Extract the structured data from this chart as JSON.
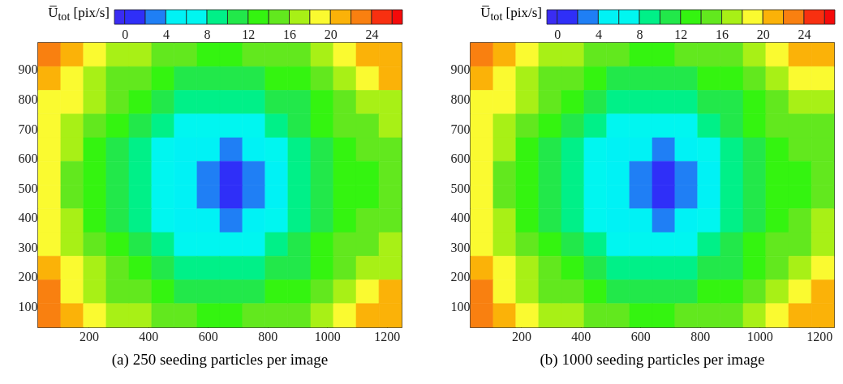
{
  "chart_data": [
    {
      "type": "heatmap",
      "title": "(a) 250 seeding particles per image",
      "clabel": "U̅$_{tot}$ [pix/s]",
      "x": [
        68,
        144,
        220,
        297,
        373,
        449,
        525,
        602,
        678,
        754,
        830,
        907,
        983,
        1059,
        1136,
        1212
      ],
      "y": [
        950,
        870,
        790,
        710,
        630,
        550,
        470,
        390,
        310,
        230,
        150,
        70
      ],
      "xlim": [
        30,
        1250
      ],
      "ylim": [
        30,
        990
      ],
      "xticks": [
        200,
        400,
        600,
        800,
        1000,
        1200
      ],
      "yticks": [
        100,
        200,
        300,
        400,
        500,
        600,
        700,
        800,
        900
      ],
      "clim": [
        -1,
        27
      ],
      "cticks": [
        0,
        4,
        8,
        12,
        16,
        20,
        24
      ],
      "colors": [
        "#3a2cf2",
        "#2f2ff8",
        "#1f7ff5",
        "#00f2f5",
        "#00f6f0",
        "#00f088",
        "#22e84a",
        "#34f410",
        "#62e81e",
        "#a8f016",
        "#fafa30",
        "#fbb208",
        "#f98010",
        "#f83010",
        "#f50a0a"
      ],
      "cells": [
        [
          23,
          21,
          19,
          17,
          17,
          15,
          15,
          13,
          13,
          15,
          15,
          15,
          17,
          19,
          21,
          21
        ],
        [
          21,
          19,
          17,
          15,
          15,
          13,
          11,
          11,
          11,
          11,
          13,
          13,
          15,
          17,
          19,
          21
        ],
        [
          19,
          19,
          17,
          15,
          13,
          11,
          9,
          9,
          9,
          9,
          11,
          11,
          13,
          15,
          17,
          17
        ],
        [
          19,
          17,
          15,
          13,
          11,
          9,
          7,
          7,
          7,
          7,
          9,
          11,
          13,
          15,
          15,
          17
        ],
        [
          19,
          17,
          13,
          11,
          9,
          7,
          5,
          5,
          3,
          5,
          7,
          9,
          11,
          13,
          15,
          15
        ],
        [
          19,
          15,
          13,
          11,
          9,
          7,
          5,
          3,
          1,
          3,
          5,
          9,
          11,
          13,
          13,
          15
        ],
        [
          19,
          15,
          13,
          11,
          9,
          7,
          5,
          3,
          1,
          3,
          5,
          9,
          11,
          13,
          13,
          15
        ],
        [
          19,
          17,
          13,
          11,
          9,
          7,
          5,
          5,
          3,
          5,
          7,
          9,
          11,
          13,
          15,
          15
        ],
        [
          19,
          17,
          15,
          13,
          11,
          9,
          7,
          7,
          7,
          7,
          9,
          11,
          13,
          15,
          15,
          17
        ],
        [
          21,
          19,
          17,
          15,
          13,
          11,
          9,
          9,
          9,
          9,
          11,
          11,
          13,
          15,
          17,
          17
        ],
        [
          23,
          19,
          17,
          15,
          15,
          13,
          11,
          11,
          11,
          11,
          13,
          13,
          15,
          17,
          19,
          21
        ],
        [
          23,
          21,
          19,
          17,
          17,
          15,
          15,
          13,
          13,
          15,
          15,
          15,
          17,
          19,
          21,
          21
        ]
      ]
    },
    {
      "type": "heatmap",
      "title": "(b) 1000 seeding particles per image",
      "clabel": "U̅$_{tot}$ [pix/s]",
      "x": [
        68,
        144,
        220,
        297,
        373,
        449,
        525,
        602,
        678,
        754,
        830,
        907,
        983,
        1059,
        1136,
        1212
      ],
      "y": [
        950,
        870,
        790,
        710,
        630,
        550,
        470,
        390,
        310,
        230,
        150,
        70
      ],
      "xlim": [
        30,
        1250
      ],
      "ylim": [
        30,
        990
      ],
      "xticks": [
        200,
        400,
        600,
        800,
        1000,
        1200
      ],
      "yticks": [
        100,
        200,
        300,
        400,
        500,
        600,
        700,
        800,
        900
      ],
      "clim": [
        -1,
        27
      ],
      "cticks": [
        0,
        4,
        8,
        12,
        16,
        20,
        24
      ],
      "colors": [
        "#3a2cf2",
        "#2f2ff8",
        "#1f7ff5",
        "#00f2f5",
        "#00f6f0",
        "#00f088",
        "#22e84a",
        "#34f410",
        "#62e81e",
        "#a8f016",
        "#fafa30",
        "#fbb208",
        "#f98010",
        "#f83010",
        "#f50a0a"
      ],
      "cells": [
        [
          23,
          21,
          19,
          17,
          17,
          15,
          15,
          13,
          13,
          15,
          15,
          15,
          17,
          19,
          21,
          21
        ],
        [
          21,
          19,
          17,
          15,
          15,
          13,
          11,
          11,
          11,
          11,
          13,
          13,
          15,
          17,
          19,
          19
        ],
        [
          19,
          19,
          17,
          15,
          13,
          11,
          9,
          9,
          9,
          9,
          11,
          11,
          13,
          15,
          17,
          17
        ],
        [
          19,
          17,
          15,
          13,
          11,
          9,
          7,
          7,
          7,
          7,
          9,
          11,
          13,
          15,
          15,
          15
        ],
        [
          19,
          17,
          13,
          11,
          9,
          7,
          5,
          5,
          3,
          5,
          7,
          9,
          11,
          13,
          15,
          15
        ],
        [
          19,
          15,
          13,
          11,
          9,
          7,
          5,
          3,
          1,
          3,
          5,
          9,
          11,
          13,
          13,
          15
        ],
        [
          19,
          15,
          13,
          11,
          9,
          7,
          5,
          3,
          1,
          3,
          5,
          9,
          11,
          13,
          13,
          15
        ],
        [
          19,
          17,
          13,
          11,
          9,
          7,
          5,
          5,
          3,
          5,
          7,
          9,
          11,
          13,
          15,
          17
        ],
        [
          19,
          17,
          15,
          13,
          11,
          9,
          7,
          7,
          7,
          7,
          9,
          11,
          13,
          15,
          15,
          17
        ],
        [
          21,
          19,
          17,
          15,
          13,
          11,
          9,
          9,
          9,
          9,
          11,
          11,
          13,
          15,
          17,
          19
        ],
        [
          23,
          19,
          17,
          15,
          15,
          13,
          11,
          11,
          11,
          11,
          13,
          13,
          15,
          17,
          19,
          21
        ],
        [
          23,
          21,
          19,
          17,
          17,
          15,
          15,
          13,
          13,
          15,
          15,
          15,
          17,
          19,
          21,
          21
        ]
      ]
    }
  ]
}
